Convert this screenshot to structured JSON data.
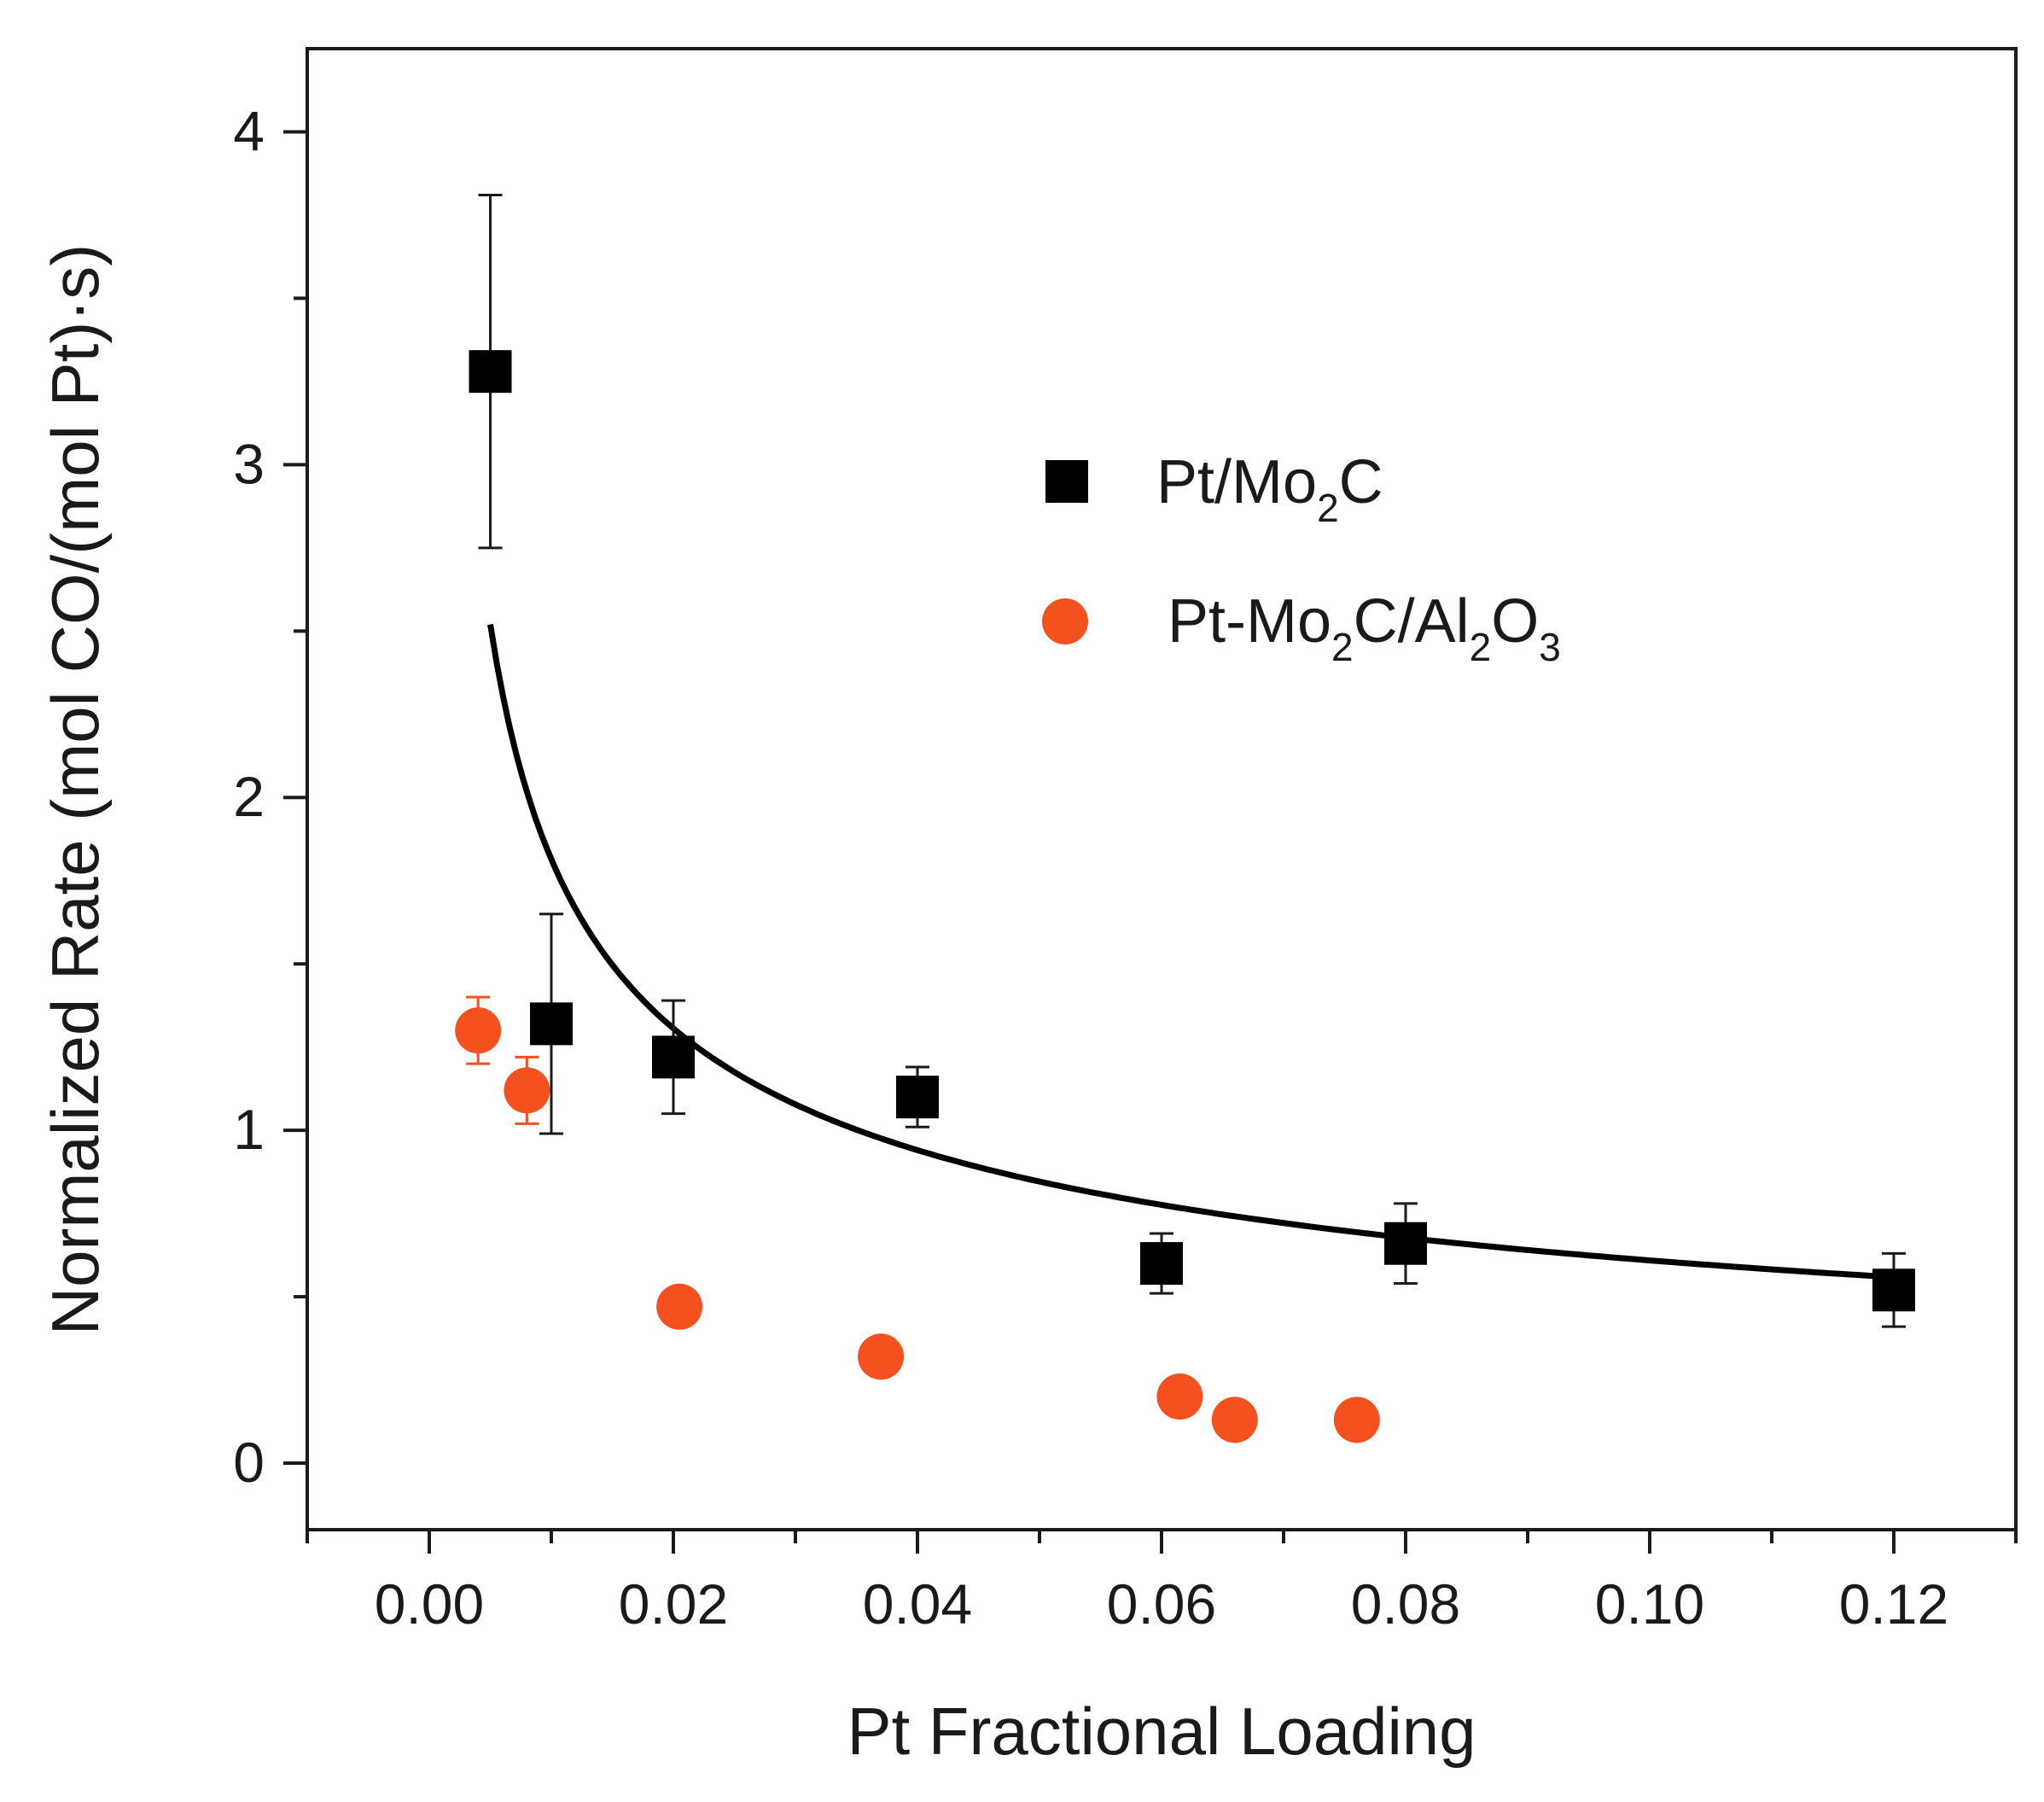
{
  "chart_data": {
    "type": "scatter",
    "title": "",
    "xlabel": "Pt Fractional Loading",
    "ylabel": "Normalized Rate (mol CO/(mol Pt)·s)",
    "xlim": [
      -0.01,
      0.13
    ],
    "ylim": [
      -0.2,
      4.25
    ],
    "x_ticks": [
      {
        "value": 0.0,
        "label": "0.00"
      },
      {
        "value": 0.02,
        "label": "0.02"
      },
      {
        "value": 0.04,
        "label": "0.04"
      },
      {
        "value": 0.06,
        "label": "0.06"
      },
      {
        "value": 0.08,
        "label": "0.08"
      },
      {
        "value": 0.1,
        "label": "0.10"
      },
      {
        "value": 0.12,
        "label": "0.12"
      }
    ],
    "x_minor_ticks": [
      -0.01,
      0.01,
      0.03,
      0.05,
      0.07,
      0.09,
      0.11,
      0.13
    ],
    "y_ticks": [
      {
        "value": 0,
        "label": "0"
      },
      {
        "value": 1,
        "label": "1"
      },
      {
        "value": 2,
        "label": "2"
      },
      {
        "value": 3,
        "label": "3"
      },
      {
        "value": 4,
        "label": "4"
      }
    ],
    "y_minor_ticks": [
      0.5,
      1.5,
      2.5,
      3.5
    ],
    "legend_position": "top-right",
    "series": [
      {
        "name": "Pt/Mo2C",
        "legend": {
          "base1": "Pt/Mo",
          "sub1": "2",
          "base2": "C"
        },
        "marker": "square",
        "color": "#000000",
        "points": [
          {
            "x": 0.005,
            "y": 3.28,
            "err": 0.53
          },
          {
            "x": 0.01,
            "y": 1.32,
            "err": 0.33
          },
          {
            "x": 0.02,
            "y": 1.22,
            "err": 0.17
          },
          {
            "x": 0.04,
            "y": 1.1,
            "err": 0.09
          },
          {
            "x": 0.06,
            "y": 0.6,
            "err": 0.09
          },
          {
            "x": 0.08,
            "y": 0.66,
            "err": 0.12
          },
          {
            "x": 0.12,
            "y": 0.52,
            "err": 0.11
          }
        ]
      },
      {
        "name": "Pt-Mo2C/Al2O3",
        "legend": {
          "base1": "Pt-Mo",
          "sub1": "2",
          "base2": "C/Al",
          "sub2": "2",
          "base3": "O",
          "sub3": "3"
        },
        "marker": "circle",
        "color": "#f4511e",
        "points": [
          {
            "x": 0.004,
            "y": 1.3,
            "err": 0.1
          },
          {
            "x": 0.008,
            "y": 1.12,
            "err": 0.1
          },
          {
            "x": 0.0205,
            "y": 0.47
          },
          {
            "x": 0.037,
            "y": 0.32
          },
          {
            "x": 0.0615,
            "y": 0.2
          },
          {
            "x": 0.066,
            "y": 0.13
          },
          {
            "x": 0.076,
            "y": 0.13
          }
        ]
      }
    ],
    "fit_curve": {
      "name": "fit",
      "color": "#000000",
      "model": "power",
      "a": 0.2045,
      "b": -0.474,
      "x_range": [
        0.005,
        0.12
      ]
    }
  }
}
